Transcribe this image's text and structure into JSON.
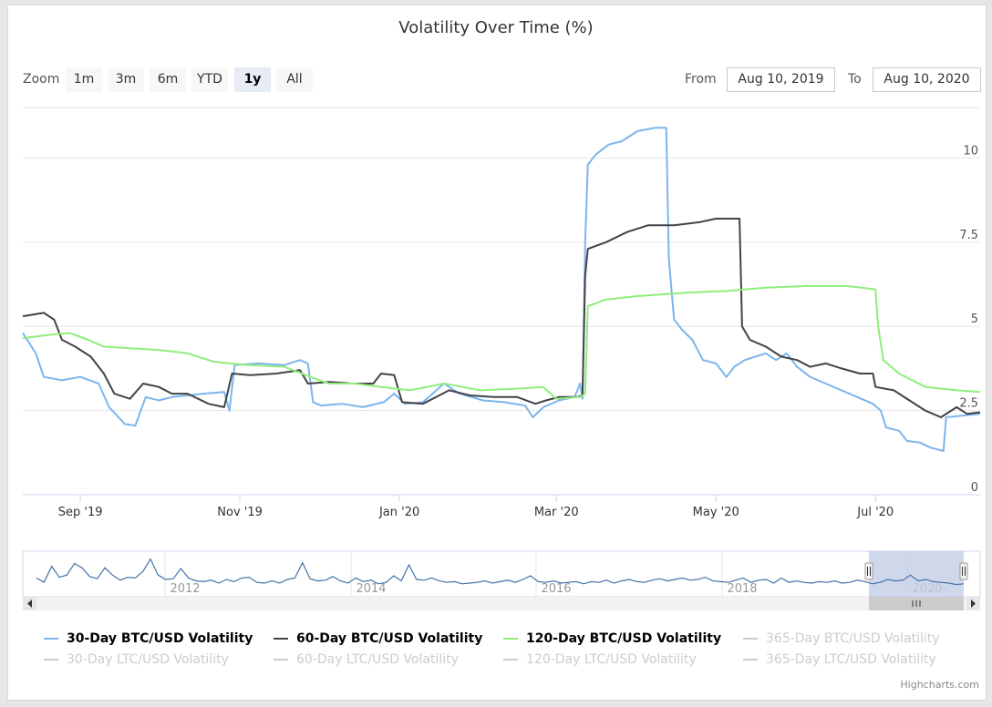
{
  "title": "Volatility Over Time (%)",
  "zoom": {
    "label": "Zoom",
    "buttons": [
      "1m",
      "3m",
      "6m",
      "YTD",
      "1y",
      "All"
    ],
    "selected": "1y"
  },
  "range": {
    "from_label": "From",
    "from_value": "Aug 10, 2019",
    "to_label": "To",
    "to_value": "Aug 10, 2020"
  },
  "credits": "Highcharts.com",
  "chart_data": {
    "type": "line",
    "title": "Volatility Over Time (%)",
    "xlim": [
      "2019-08-10",
      "2020-08-10"
    ],
    "ylim": [
      0,
      11.5
    ],
    "y_ticks": [
      "0",
      "2.5",
      "5",
      "7.5",
      "10"
    ],
    "x_ticks": [
      {
        "date": "2019-09-01",
        "label": "Sep '19"
      },
      {
        "date": "2019-11-01",
        "label": "Nov '19"
      },
      {
        "date": "2020-01-01",
        "label": "Jan '20"
      },
      {
        "date": "2020-03-01",
        "label": "Mar '20"
      },
      {
        "date": "2020-05-01",
        "label": "May '20"
      },
      {
        "date": "2020-07-01",
        "label": "Jul '20"
      }
    ],
    "grid": true,
    "legend_position": "bottom",
    "series": [
      {
        "name": "30-Day BTC/USD Volatility",
        "color": "#7cb5ec",
        "visible": true,
        "points": [
          [
            "2019-08-10",
            4.8
          ],
          [
            "2019-08-15",
            4.2
          ],
          [
            "2019-08-18",
            3.5
          ],
          [
            "2019-08-25",
            3.4
          ],
          [
            "2019-09-01",
            3.5
          ],
          [
            "2019-09-08",
            3.3
          ],
          [
            "2019-09-12",
            2.6
          ],
          [
            "2019-09-18",
            2.1
          ],
          [
            "2019-09-22",
            2.05
          ],
          [
            "2019-09-26",
            2.9
          ],
          [
            "2019-10-01",
            2.8
          ],
          [
            "2019-10-06",
            2.9
          ],
          [
            "2019-10-12",
            2.95
          ],
          [
            "2019-10-18",
            3.0
          ],
          [
            "2019-10-26",
            3.05
          ],
          [
            "2019-10-28",
            2.5
          ],
          [
            "2019-10-30",
            3.85
          ],
          [
            "2019-11-08",
            3.9
          ],
          [
            "2019-11-18",
            3.85
          ],
          [
            "2019-11-24",
            4.0
          ],
          [
            "2019-11-27",
            3.9
          ],
          [
            "2019-11-29",
            2.75
          ],
          [
            "2019-12-02",
            2.65
          ],
          [
            "2019-12-10",
            2.7
          ],
          [
            "2019-12-18",
            2.6
          ],
          [
            "2019-12-26",
            2.75
          ],
          [
            "2019-12-30",
            3.0
          ],
          [
            "2020-01-03",
            2.7
          ],
          [
            "2020-01-10",
            2.75
          ],
          [
            "2020-01-18",
            3.3
          ],
          [
            "2020-01-24",
            3.0
          ],
          [
            "2020-02-02",
            2.8
          ],
          [
            "2020-02-10",
            2.75
          ],
          [
            "2020-02-18",
            2.65
          ],
          [
            "2020-02-21",
            2.3
          ],
          [
            "2020-02-25",
            2.6
          ],
          [
            "2020-03-02",
            2.8
          ],
          [
            "2020-03-08",
            2.9
          ],
          [
            "2020-03-10",
            3.3
          ],
          [
            "2020-03-11",
            2.85
          ],
          [
            "2020-03-12",
            7.5
          ],
          [
            "2020-03-13",
            9.8
          ],
          [
            "2020-03-16",
            10.1
          ],
          [
            "2020-03-21",
            10.4
          ],
          [
            "2020-03-26",
            10.5
          ],
          [
            "2020-04-01",
            10.8
          ],
          [
            "2020-04-08",
            10.9
          ],
          [
            "2020-04-12",
            10.9
          ],
          [
            "2020-04-13",
            7.0
          ],
          [
            "2020-04-15",
            5.2
          ],
          [
            "2020-04-18",
            4.9
          ],
          [
            "2020-04-22",
            4.6
          ],
          [
            "2020-04-26",
            4.0
          ],
          [
            "2020-05-01",
            3.9
          ],
          [
            "2020-05-05",
            3.5
          ],
          [
            "2020-05-08",
            3.8
          ],
          [
            "2020-05-12",
            4.0
          ],
          [
            "2020-05-16",
            4.1
          ],
          [
            "2020-05-20",
            4.2
          ],
          [
            "2020-05-24",
            4.0
          ],
          [
            "2020-05-28",
            4.2
          ],
          [
            "2020-06-01",
            3.8
          ],
          [
            "2020-06-06",
            3.5
          ],
          [
            "2020-06-12",
            3.3
          ],
          [
            "2020-06-18",
            3.1
          ],
          [
            "2020-06-24",
            2.9
          ],
          [
            "2020-06-30",
            2.7
          ],
          [
            "2020-07-03",
            2.5
          ],
          [
            "2020-07-05",
            2.0
          ],
          [
            "2020-07-10",
            1.9
          ],
          [
            "2020-07-13",
            1.6
          ],
          [
            "2020-07-18",
            1.55
          ],
          [
            "2020-07-22",
            1.4
          ],
          [
            "2020-07-27",
            1.3
          ],
          [
            "2020-07-28",
            2.3
          ],
          [
            "2020-08-03",
            2.35
          ],
          [
            "2020-08-10",
            2.4
          ]
        ]
      },
      {
        "name": "60-Day BTC/USD Volatility",
        "color": "#434348",
        "visible": true,
        "points": [
          [
            "2019-08-10",
            5.3
          ],
          [
            "2019-08-18",
            5.4
          ],
          [
            "2019-08-22",
            5.2
          ],
          [
            "2019-08-25",
            4.6
          ],
          [
            "2019-08-30",
            4.4
          ],
          [
            "2019-09-05",
            4.1
          ],
          [
            "2019-09-10",
            3.6
          ],
          [
            "2019-09-14",
            3.0
          ],
          [
            "2019-09-20",
            2.85
          ],
          [
            "2019-09-25",
            3.3
          ],
          [
            "2019-10-01",
            3.2
          ],
          [
            "2019-10-06",
            3.0
          ],
          [
            "2019-10-12",
            3.0
          ],
          [
            "2019-10-20",
            2.7
          ],
          [
            "2019-10-26",
            2.6
          ],
          [
            "2019-10-29",
            3.6
          ],
          [
            "2019-11-05",
            3.55
          ],
          [
            "2019-11-15",
            3.6
          ],
          [
            "2019-11-24",
            3.7
          ],
          [
            "2019-11-27",
            3.3
          ],
          [
            "2019-12-05",
            3.35
          ],
          [
            "2019-12-14",
            3.3
          ],
          [
            "2019-12-22",
            3.3
          ],
          [
            "2019-12-25",
            3.6
          ],
          [
            "2019-12-30",
            3.55
          ],
          [
            "2020-01-02",
            2.75
          ],
          [
            "2020-01-10",
            2.7
          ],
          [
            "2020-01-20",
            3.1
          ],
          [
            "2020-01-28",
            2.95
          ],
          [
            "2020-02-06",
            2.9
          ],
          [
            "2020-02-15",
            2.9
          ],
          [
            "2020-02-22",
            2.7
          ],
          [
            "2020-02-26",
            2.8
          ],
          [
            "2020-03-02",
            2.9
          ],
          [
            "2020-03-09",
            2.9
          ],
          [
            "2020-03-11",
            2.95
          ],
          [
            "2020-03-12",
            6.5
          ],
          [
            "2020-03-13",
            7.3
          ],
          [
            "2020-03-20",
            7.5
          ],
          [
            "2020-03-28",
            7.8
          ],
          [
            "2020-04-05",
            8.0
          ],
          [
            "2020-04-15",
            8.0
          ],
          [
            "2020-04-25",
            8.1
          ],
          [
            "2020-05-01",
            8.2
          ],
          [
            "2020-05-10",
            8.2
          ],
          [
            "2020-05-11",
            5.0
          ],
          [
            "2020-05-14",
            4.6
          ],
          [
            "2020-05-20",
            4.4
          ],
          [
            "2020-05-26",
            4.1
          ],
          [
            "2020-06-01",
            4.0
          ],
          [
            "2020-06-06",
            3.8
          ],
          [
            "2020-06-12",
            3.9
          ],
          [
            "2020-06-18",
            3.75
          ],
          [
            "2020-06-25",
            3.6
          ],
          [
            "2020-06-30",
            3.6
          ],
          [
            "2020-07-01",
            3.2
          ],
          [
            "2020-07-08",
            3.1
          ],
          [
            "2020-07-14",
            2.8
          ],
          [
            "2020-07-20",
            2.5
          ],
          [
            "2020-07-26",
            2.3
          ],
          [
            "2020-08-01",
            2.6
          ],
          [
            "2020-08-05",
            2.4
          ],
          [
            "2020-08-10",
            2.45
          ]
        ]
      },
      {
        "name": "120-Day BTC/USD Volatility",
        "color": "#90ed7d",
        "visible": true,
        "points": [
          [
            "2019-08-10",
            4.65
          ],
          [
            "2019-08-20",
            4.75
          ],
          [
            "2019-08-28",
            4.8
          ],
          [
            "2019-09-04",
            4.6
          ],
          [
            "2019-09-10",
            4.4
          ],
          [
            "2019-09-20",
            4.35
          ],
          [
            "2019-10-01",
            4.3
          ],
          [
            "2019-10-12",
            4.2
          ],
          [
            "2019-10-22",
            3.95
          ],
          [
            "2019-10-28",
            3.9
          ],
          [
            "2019-11-05",
            3.85
          ],
          [
            "2019-11-18",
            3.8
          ],
          [
            "2019-11-28",
            3.5
          ],
          [
            "2019-12-05",
            3.3
          ],
          [
            "2019-12-15",
            3.3
          ],
          [
            "2019-12-25",
            3.2
          ],
          [
            "2020-01-05",
            3.1
          ],
          [
            "2020-01-18",
            3.3
          ],
          [
            "2020-02-01",
            3.1
          ],
          [
            "2020-02-15",
            3.15
          ],
          [
            "2020-02-25",
            3.2
          ],
          [
            "2020-03-01",
            2.85
          ],
          [
            "2020-03-10",
            2.9
          ],
          [
            "2020-03-12",
            3.0
          ],
          [
            "2020-03-13",
            5.6
          ],
          [
            "2020-03-20",
            5.8
          ],
          [
            "2020-04-01",
            5.9
          ],
          [
            "2020-04-20",
            6.0
          ],
          [
            "2020-05-05",
            6.05
          ],
          [
            "2020-05-20",
            6.15
          ],
          [
            "2020-06-05",
            6.2
          ],
          [
            "2020-06-20",
            6.2
          ],
          [
            "2020-07-01",
            6.1
          ],
          [
            "2020-07-02",
            5.0
          ],
          [
            "2020-07-04",
            4.0
          ],
          [
            "2020-07-10",
            3.6
          ],
          [
            "2020-07-20",
            3.2
          ],
          [
            "2020-08-01",
            3.1
          ],
          [
            "2020-08-10",
            3.05
          ]
        ]
      }
    ]
  },
  "navigator": {
    "labels": [
      "2012",
      "2014",
      "2016",
      "2018",
      "2020"
    ],
    "series_color": "#4572a7",
    "range_fill": "#c3cde6",
    "values": [
      2.2,
      1.6,
      3.8,
      2.3,
      2.6,
      4.2,
      3.6,
      2.4,
      2.1,
      3.6,
      2.6,
      1.9,
      2.3,
      2.2,
      3.1,
      4.8,
      2.6,
      2.0,
      2.1,
      3.5,
      2.2,
      1.8,
      1.7,
      1.9,
      1.5,
      2.0,
      1.7,
      2.2,
      2.3,
      1.6,
      1.5,
      1.8,
      1.5,
      2.0,
      2.2,
      4.3,
      2.1,
      1.8,
      1.9,
      2.4,
      1.8,
      1.5,
      2.2,
      1.7,
      1.9,
      1.4,
      1.6,
      2.5,
      1.8,
      4.0,
      2.0,
      1.9,
      2.2,
      1.8,
      1.6,
      1.7,
      1.4,
      1.5,
      1.6,
      1.8,
      1.5,
      1.7,
      1.9,
      1.6,
      2.0,
      2.5,
      1.7,
      1.6,
      1.8,
      1.5,
      1.6,
      1.7,
      1.4,
      1.7,
      1.6,
      1.9,
      1.5,
      1.8,
      2.0,
      1.7,
      1.6,
      1.9,
      2.1,
      1.8,
      2.0,
      2.2,
      1.9,
      2.0,
      2.3,
      1.8,
      1.7,
      1.6,
      1.9,
      2.2,
      1.6,
      1.9,
      2.0,
      1.5,
      2.2,
      1.6,
      1.8,
      1.6,
      1.5,
      1.7,
      1.6,
      1.8,
      1.5,
      1.6,
      1.9,
      1.7,
      1.4,
      1.6,
      2.0,
      1.8,
      1.9,
      2.6,
      1.8,
      2.0,
      1.7,
      1.6,
      1.5,
      1.3,
      1.4
    ]
  },
  "legend": {
    "items": [
      {
        "label": "30-Day BTC/USD Volatility",
        "color": "#7cb5ec",
        "visible": true
      },
      {
        "label": "60-Day BTC/USD Volatility",
        "color": "#434348",
        "visible": true
      },
      {
        "label": "120-Day BTC/USD Volatility",
        "color": "#90ed7d",
        "visible": true
      },
      {
        "label": "365-Day BTC/USD Volatility",
        "color": "#f7a35c",
        "visible": false
      },
      {
        "label": "30-Day LTC/USD Volatility",
        "color": "#8085e9",
        "visible": false
      },
      {
        "label": "60-Day LTC/USD Volatility",
        "color": "#f15c80",
        "visible": false
      },
      {
        "label": "120-Day LTC/USD Volatility",
        "color": "#e4d354",
        "visible": false
      },
      {
        "label": "365-Day LTC/USD Volatility",
        "color": "#2b908f",
        "visible": false
      }
    ]
  }
}
